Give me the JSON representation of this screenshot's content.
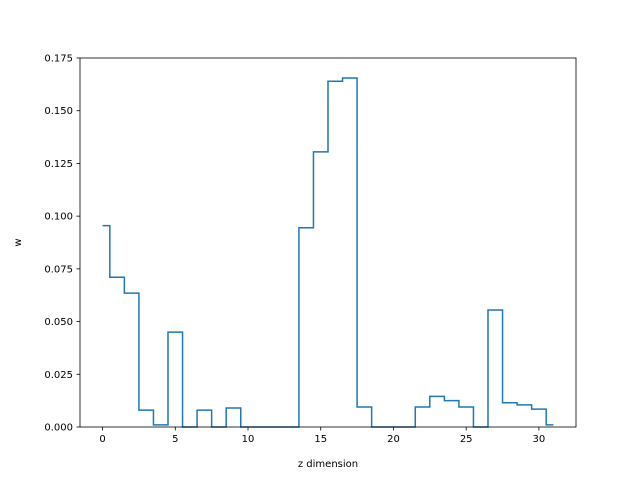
{
  "chart_data": {
    "type": "line",
    "drawstyle": "steps-mid",
    "title": "",
    "xlabel": "z dimension",
    "ylabel": "w",
    "xlim": [
      -1.55,
      32.55
    ],
    "ylim": [
      0.0,
      0.175
    ],
    "xticks": [
      0,
      5,
      10,
      15,
      20,
      25,
      30
    ],
    "xtick_labels": [
      "0",
      "5",
      "10",
      "15",
      "20",
      "25",
      "30"
    ],
    "yticks": [
      0.0,
      0.025,
      0.05,
      0.075,
      0.1,
      0.125,
      0.15,
      0.175
    ],
    "ytick_labels": [
      "0.000",
      "0.025",
      "0.050",
      "0.075",
      "0.100",
      "0.125",
      "0.150",
      "0.175"
    ],
    "grid": false,
    "color": "#1f77b4",
    "x": [
      0,
      1,
      2,
      3,
      4,
      5,
      6,
      7,
      8,
      9,
      10,
      11,
      12,
      13,
      14,
      15,
      16,
      17,
      18,
      19,
      20,
      21,
      22,
      23,
      24,
      25,
      26,
      27,
      28,
      29,
      30,
      31
    ],
    "values": [
      0.0955,
      0.071,
      0.0635,
      0.008,
      0.001,
      0.045,
      0.0,
      0.008,
      0.0,
      0.009,
      0.0,
      0.0,
      0.0,
      0.0,
      0.0945,
      0.1305,
      0.164,
      0.1655,
      0.0095,
      0.0,
      0.0,
      0.0,
      0.0095,
      0.0145,
      0.0125,
      0.0095,
      0.0,
      0.0555,
      0.0115,
      0.0105,
      0.0085,
      0.001
    ]
  }
}
